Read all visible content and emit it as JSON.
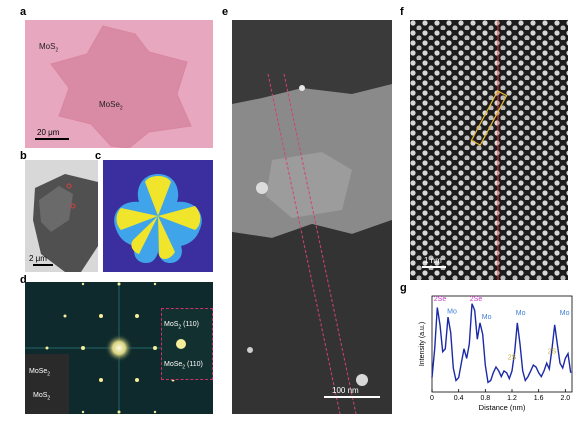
{
  "panels": {
    "a": {
      "label": "a",
      "mos2": "MoS",
      "mos2_sub": "2",
      "mose2": "MoSe",
      "mose2_sub": "2",
      "scale": "20 μm"
    },
    "b": {
      "label": "b",
      "scale": "2 μm"
    },
    "c": {
      "label": "c"
    },
    "d": {
      "label": "d",
      "inset_mos2": "MoS",
      "inset_mos2_sub": "2",
      "inset_mos2_idx": " (110)",
      "inset_mose2": "MoSe",
      "inset_mose2_sub": "2",
      "inset_mose2_idx": " (110)",
      "lower_mose2": "MoSe",
      "lower_mose2_sub": "2",
      "lower_mos2": "MoS",
      "lower_mos2_sub": "2"
    },
    "e": {
      "label": "e",
      "scale": "100 nm"
    },
    "f": {
      "label": "f",
      "scale": "1 nm"
    },
    "g": {
      "label": "g"
    }
  },
  "chart_data": {
    "type": "line",
    "xlabel": "Distance (nm)",
    "ylabel": "Intensity (a.u.)",
    "xlim": [
      0,
      2.1
    ],
    "xticks": [
      "0",
      "0.4",
      "0.8",
      "1.2",
      "1.6",
      "2.0"
    ],
    "series": [
      {
        "color": "#1c2aa8",
        "x": [
          0,
          0.04,
          0.08,
          0.12,
          0.16,
          0.2,
          0.24,
          0.28,
          0.32,
          0.36,
          0.4,
          0.44,
          0.48,
          0.52,
          0.56,
          0.6,
          0.64,
          0.68,
          0.72,
          0.76,
          0.8,
          0.84,
          0.88,
          0.92,
          0.96,
          1.0,
          1.04,
          1.08,
          1.12,
          1.16,
          1.2,
          1.24,
          1.28,
          1.32,
          1.36,
          1.4,
          1.44,
          1.48,
          1.52,
          1.56,
          1.6,
          1.64,
          1.68,
          1.72,
          1.76,
          1.8,
          1.84,
          1.88,
          1.92,
          1.96,
          2.0,
          2.04,
          2.08
        ],
        "y": [
          0.15,
          0.45,
          0.88,
          0.7,
          0.42,
          0.45,
          0.78,
          0.62,
          0.25,
          0.12,
          0.15,
          0.3,
          0.45,
          0.35,
          0.5,
          0.92,
          0.85,
          0.55,
          0.72,
          0.6,
          0.28,
          0.1,
          0.12,
          0.2,
          0.26,
          0.22,
          0.16,
          0.22,
          0.2,
          0.14,
          0.22,
          0.42,
          0.72,
          0.5,
          0.22,
          0.12,
          0.16,
          0.22,
          0.28,
          0.26,
          0.2,
          0.16,
          0.22,
          0.3,
          0.24,
          0.45,
          0.7,
          0.5,
          0.3,
          0.25,
          0.35,
          0.4,
          0.2
        ]
      }
    ],
    "annotations": [
      {
        "text": "2Se",
        "x": 0.12,
        "y": 0.95,
        "color": "#c83cc8"
      },
      {
        "text": "Mo",
        "x": 0.3,
        "y": 0.82,
        "color": "#3d7fd6"
      },
      {
        "text": "2Se",
        "x": 0.66,
        "y": 0.95,
        "color": "#c83cc8"
      },
      {
        "text": "Mo",
        "x": 0.82,
        "y": 0.76,
        "color": "#3d7fd6"
      },
      {
        "text": "Mo",
        "x": 1.33,
        "y": 0.8,
        "color": "#3d7fd6"
      },
      {
        "text": "Mo",
        "x": 1.99,
        "y": 0.8,
        "color": "#3d7fd6"
      },
      {
        "text": "2S",
        "x": 1.2,
        "y": 0.34,
        "color": "#c8b43c"
      },
      {
        "text": "2S",
        "x": 1.8,
        "y": 0.4,
        "color": "#c8b43c"
      }
    ]
  }
}
